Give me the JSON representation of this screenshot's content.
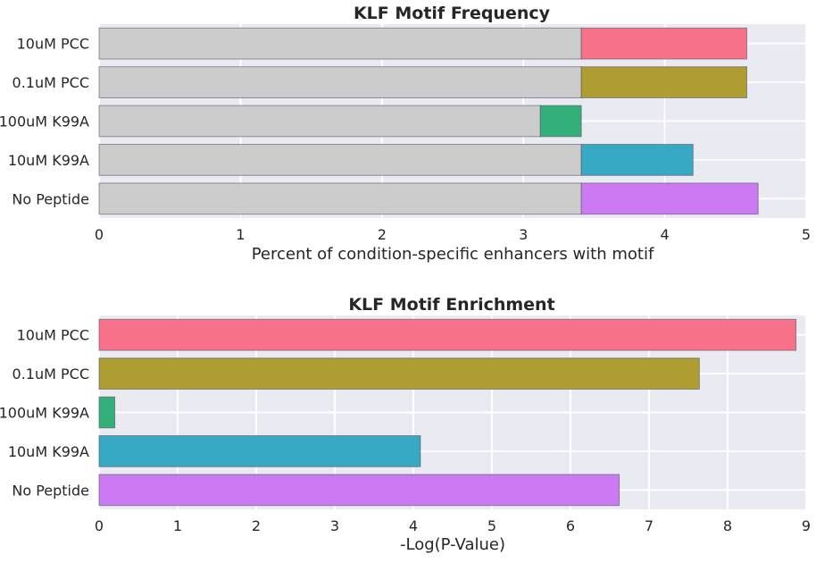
{
  "chart_data": [
    {
      "type": "bar",
      "orientation": "horizontal",
      "stacked": true,
      "title": "KLF Motif Frequency",
      "xlabel": "Percent of condition-specific enhancers with motif",
      "ylabel": "",
      "xlim": [
        0,
        5
      ],
      "xticks": [
        "0",
        "1",
        "2",
        "3",
        "4",
        "5"
      ],
      "grid": true,
      "categories": [
        "10uM PCC",
        "0.1uM PCC",
        "100uM K99A",
        "10uM K99A",
        "No Peptide"
      ],
      "series": [
        {
          "values": [
            3.41,
            3.41,
            3.12,
            3.41,
            3.41
          ],
          "colors": [
            "#cccccc",
            "#cccccc",
            "#cccccc",
            "#cccccc",
            "#cccccc"
          ]
        },
        {
          "values": [
            1.17,
            1.17,
            0.29,
            0.79,
            1.25
          ],
          "colors": [
            "#f77189",
            "#ae9d31",
            "#33b07a",
            "#38a9c5",
            "#cc7af4"
          ]
        }
      ]
    },
    {
      "type": "bar",
      "orientation": "horizontal",
      "title": "KLF Motif Enrichment",
      "xlabel": "-Log(P-Value)",
      "ylabel": "",
      "xlim": [
        0,
        9
      ],
      "xticks": [
        "0",
        "1",
        "2",
        "3",
        "4",
        "5",
        "6",
        "7",
        "8",
        "9"
      ],
      "grid": true,
      "categories": [
        "10uM PCC",
        "0.1uM PCC",
        "100uM K99A",
        "10uM K99A",
        "No Peptide"
      ],
      "values": [
        8.87,
        7.64,
        0.2,
        4.09,
        6.62
      ],
      "colors": [
        "#f77189",
        "#ae9d31",
        "#33b07a",
        "#38a9c5",
        "#cc7af4"
      ]
    }
  ]
}
